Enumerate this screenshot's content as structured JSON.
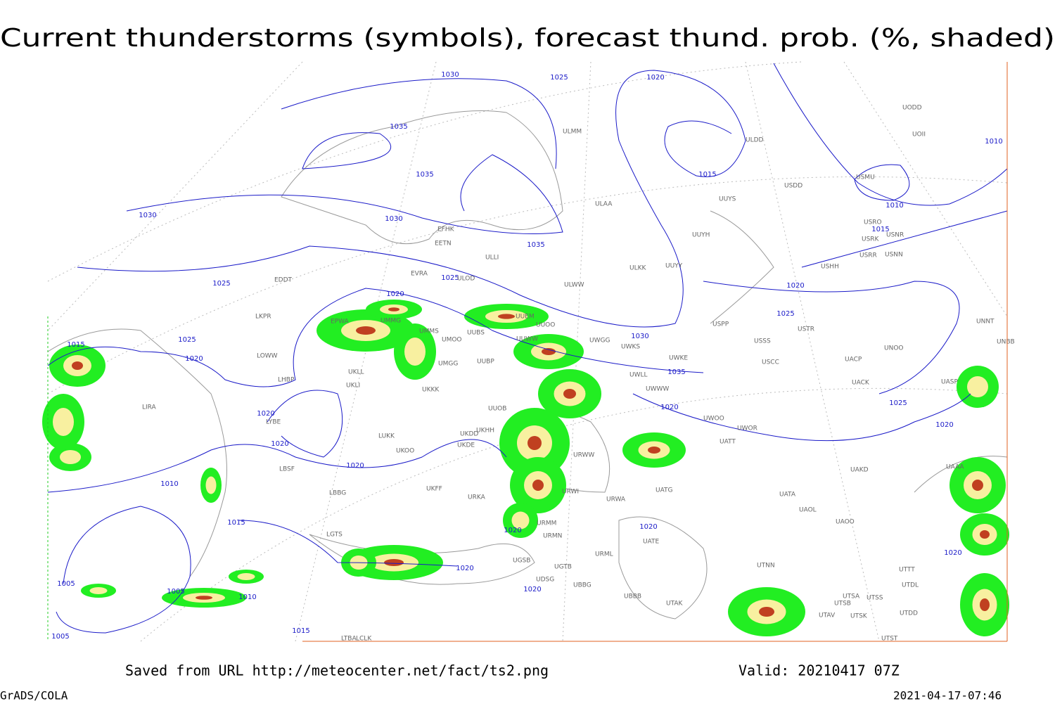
{
  "header": {
    "title": "Current thunderstorms (symbols), forecast thund. prob. (%, shaded)"
  },
  "map": {
    "isobar_labels": [
      "1030",
      "1025",
      "1020",
      "1035",
      "1035",
      "1030",
      "1030",
      "1035",
      "1025",
      "1025",
      "1020",
      "1015",
      "1025",
      "1020",
      "1030",
      "1035",
      "1020",
      "1020",
      "1020",
      "1020",
      "1010",
      "1015",
      "1020",
      "1020",
      "1020",
      "1020",
      "1005",
      "1005",
      "1010",
      "1015",
      "1005",
      "1015",
      "1010",
      "1010",
      "1015",
      "1020",
      "1025",
      "1025",
      "1020",
      "1020"
    ],
    "stations": [
      "ULMM",
      "ULDD",
      "UODD",
      "UOII",
      "USDD",
      "USMU",
      "UUYS",
      "ULAA",
      "EFHK",
      "EETN",
      "ULLI",
      "USRO",
      "USRK",
      "USNR",
      "USRR",
      "USNN",
      "UUYH",
      "UUYY",
      "ULKK",
      "USHH",
      "EVRA",
      "ULOD",
      "ULWW",
      "EDDT",
      "UMMG",
      "UMMS",
      "UUEM",
      "UMOO",
      "UUBS",
      "UUWW",
      "UWGG",
      "UWKS",
      "UUOO",
      "USPP",
      "USTR",
      "USSS",
      "UNNT",
      "UNBB",
      "LKPR",
      "EPWA",
      "LOWW",
      "UKLL",
      "UKLI",
      "UMGG",
      "UUBP",
      "UWKE",
      "UWLL",
      "UWWW",
      "UUOB",
      "UKKK",
      "USCC",
      "UACP",
      "UNOO",
      "UACK",
      "UASP",
      "LHBP",
      "LIRA",
      "LYBE",
      "UKHH",
      "UKDD",
      "UKDE",
      "UKOO",
      "LUKK",
      "UWOO",
      "UWOR",
      "UATT",
      "UAKD",
      "UAAA",
      "LBSF",
      "LBBG",
      "UKFF",
      "URKA",
      "URWW",
      "URWI",
      "URWA",
      "UATG",
      "UATA",
      "UAOL",
      "UAOO",
      "URMM",
      "URMN",
      "URML",
      "UATE",
      "UGSB",
      "UGTB",
      "UDSG",
      "UBBG",
      "UBBB",
      "UTAK",
      "UTNN",
      "UTSA",
      "UTSS",
      "UTSB",
      "UTSK",
      "UTAV",
      "UTST",
      "UTTT",
      "UTDL",
      "UTDD",
      "LGTS",
      "LTBA",
      "LCLK"
    ]
  },
  "footer": {
    "saved_from": "Saved from URL http://meteocenter.net/fact/ts2.png",
    "valid": "Valid: 20210417 07Z",
    "software": "GrADS/COLA",
    "timestamp": "2021-04-17-07:46"
  }
}
